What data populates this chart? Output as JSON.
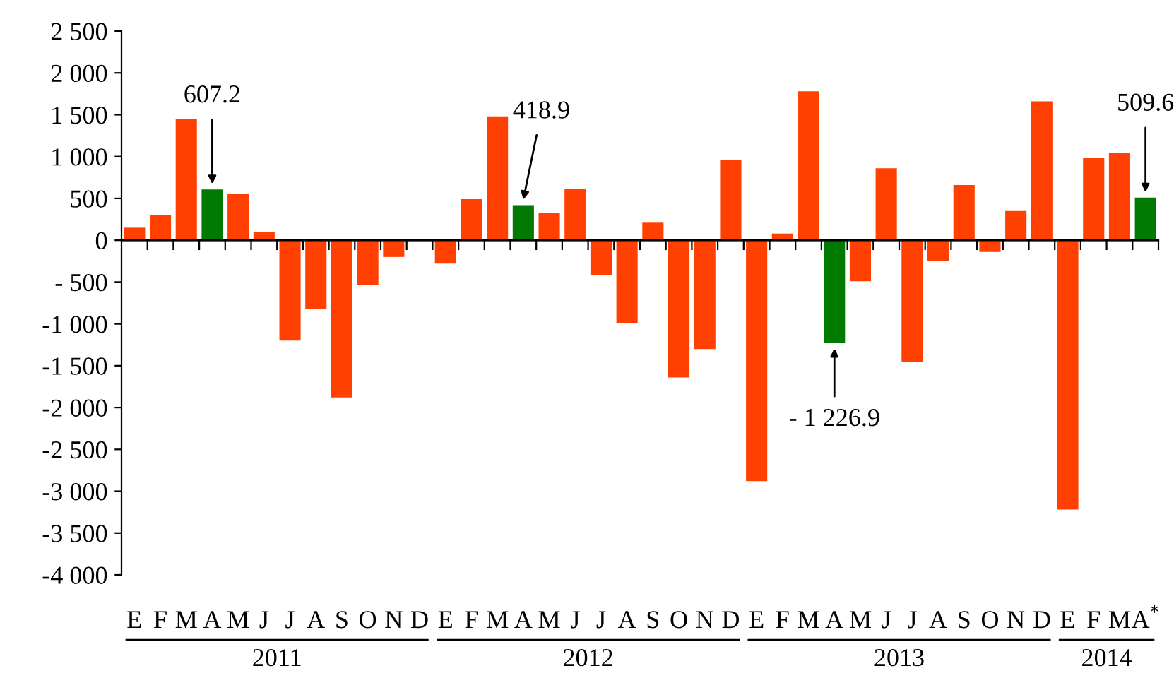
{
  "chart_data": {
    "type": "bar",
    "categories": [
      "E",
      "F",
      "M",
      "A",
      "M",
      "J",
      "J",
      "A",
      "S",
      "O",
      "N",
      "D",
      "E",
      "F",
      "M",
      "A",
      "M",
      "J",
      "J",
      "A",
      "S",
      "O",
      "N",
      "D",
      "E",
      "F",
      "M",
      "A",
      "M",
      "J",
      "J",
      "A",
      "S",
      "O",
      "N",
      "D",
      "E",
      "F",
      "M",
      "A$^{*}$"
    ],
    "values": [
      150,
      300,
      1450,
      607.2,
      550,
      100,
      -1200,
      -820,
      -1880,
      -540,
      -200,
      null,
      -280,
      490,
      1480,
      418.9,
      330,
      610,
      -420,
      -990,
      210,
      -1640,
      -1300,
      960,
      -2880,
      80,
      1780,
      -1226.9,
      -490,
      860,
      -1450,
      -250,
      660,
      -140,
      350,
      1660,
      -3220,
      980,
      1040,
      509.6
    ],
    "colors": [
      "#ff4000",
      "#ff4000",
      "#ff4000",
      "#007a00",
      "#ff4000",
      "#ff4000",
      "#ff4000",
      "#ff4000",
      "#ff4000",
      "#ff4000",
      "#ff4000",
      "#ff4000",
      "#ff4000",
      "#ff4000",
      "#ff4000",
      "#007a00",
      "#ff4000",
      "#ff4000",
      "#ff4000",
      "#ff4000",
      "#ff4000",
      "#ff4000",
      "#ff4000",
      "#ff4000",
      "#ff4000",
      "#ff4000",
      "#ff4000",
      "#007a00",
      "#ff4000",
      "#ff4000",
      "#ff4000",
      "#ff4000",
      "#ff4000",
      "#ff4000",
      "#ff4000",
      "#ff4000",
      "#ff4000",
      "#ff4000",
      "#ff4000",
      "#007a00"
    ],
    "value_labels": [
      null,
      null,
      null,
      "607.2",
      null,
      null,
      null,
      null,
      null,
      null,
      null,
      null,
      null,
      null,
      null,
      "418.9",
      null,
      null,
      null,
      null,
      null,
      null,
      null,
      null,
      null,
      null,
      null,
      "- 1 226.9",
      null,
      null,
      null,
      null,
      null,
      null,
      null,
      null,
      null,
      null,
      null,
      "509.6"
    ],
    "annotations": [
      "2011",
      "2012",
      "2013",
      "2014"
    ],
    "ylim": [
      -4000,
      2500
    ],
    "yticks": [
      {
        "value": 2500,
        "label": "2 500"
      },
      {
        "value": 2000,
        "label": "2 000"
      },
      {
        "value": 1500,
        "label": "1 500"
      },
      {
        "value": 1000,
        "label": "1 000"
      },
      {
        "value": 500,
        "label": "500"
      },
      0,
      {
        "value": -500,
        "label": "- 500"
      },
      {
        "value": -1000,
        "label": "-1 000"
      },
      {
        "value": -1500,
        "label": "-1 500"
      },
      {
        "value": -2000,
        "label": "-2 000"
      },
      {
        "value": -2500,
        "label": "-2 500"
      },
      {
        "value": -3000,
        "label": "-3 000"
      },
      {
        "value": -3500,
        "label": "-3 500"
      },
      {
        "value": -4000,
        "label": "-4 000"
      }
    ],
    "grid": false
  }
}
